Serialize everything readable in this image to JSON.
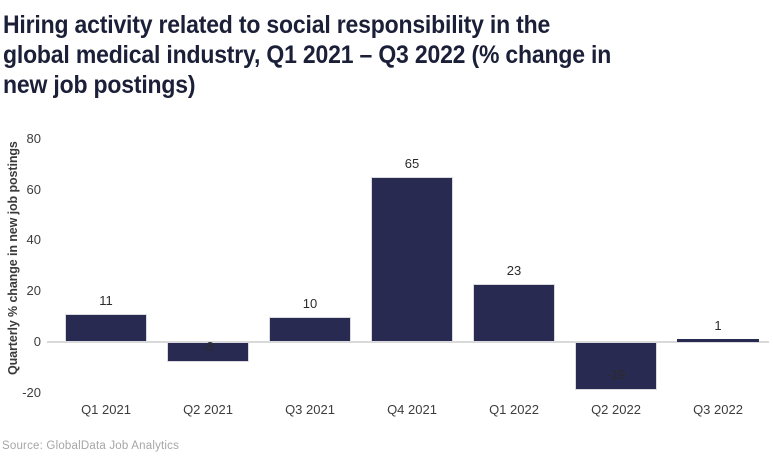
{
  "header": {
    "title_lines": [
      "Hiring activity related to social responsibility in the",
      "global medical industry, Q1 2021 – Q3 2022 (% change in",
      "new job postings)"
    ]
  },
  "footer": {
    "source": "Source: GlobalData Job Analytics"
  },
  "colors": {
    "bar": "#292a51",
    "bar_border": "#d9d9de",
    "title_text": "#1b2038",
    "axis_text": "#3d3d3d",
    "value_label_text": "#2b2b2b",
    "zero_line": "#d9d9d9",
    "source_text": "#a6a6a6",
    "background": "#ffffff"
  },
  "chart_data": {
    "type": "bar",
    "title": "Hiring activity related to social responsibility in the global medical industry, Q1 2021 – Q3 2022 (% change in new job postings)",
    "categories": [
      "Q1 2021",
      "Q2 2021",
      "Q3 2021",
      "Q4 2021",
      "Q1 2022",
      "Q2 2022",
      "Q3 2022"
    ],
    "values": [
      11,
      -8,
      10,
      65,
      23,
      -19,
      1
    ],
    "value_labels": [
      "11",
      "-8",
      "10",
      "65",
      "23",
      "-19",
      "1"
    ],
    "xlabel": "",
    "ylabel": "Quarterly % change in new job postings",
    "ylim": [
      -20,
      80
    ],
    "yticks": [
      80,
      60,
      40,
      20,
      0,
      -20
    ],
    "grid": false,
    "legend": null,
    "bar_color": "#292a51",
    "source": "Source: GlobalData Job Analytics"
  }
}
